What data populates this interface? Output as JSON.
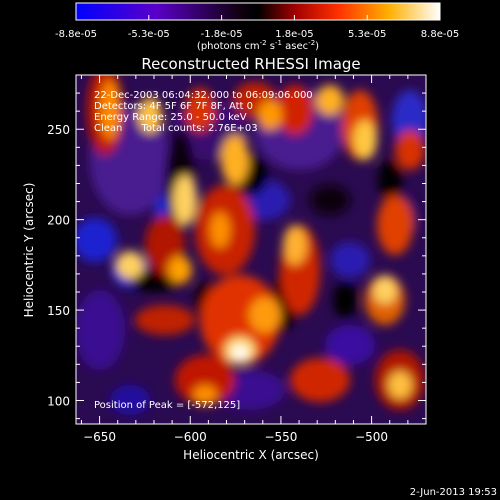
{
  "chart_data": {
    "type": "heatmap",
    "title": "Reconstructed RHESSI Image",
    "xlabel": "Heliocentric X (arcsec)",
    "ylabel": "Heliocentric Y (arcsec)",
    "xlim": [
      -663,
      -470
    ],
    "ylim": [
      87,
      280
    ],
    "x_ticks": [
      -650,
      -600,
      -550,
      -500
    ],
    "y_ticks": [
      100,
      150,
      200,
      250
    ],
    "colorbar": {
      "tick_labels": [
        "-8.8e-05",
        "-5.3e-05",
        "-1.8e-05",
        "1.8e-05",
        "5.3e-05",
        "8.8e-05"
      ],
      "range": [
        -8.8e-05,
        8.8e-05
      ],
      "units_label": "(photons cm",
      "units_exp1": "-2",
      "units_mid": " s",
      "units_exp2": "-1",
      "units_end": " asec",
      "units_exp3": "-2",
      "units_close": ")"
    },
    "annotations": [
      "22-Dec-2003 06:04:32.000 to 06:09:06.000",
      "Detectors: 4F 5F 6F 7F 8F, Att 0",
      "Energy Range: 25.0 - 50.0 keV",
      "Clean      Total counts: 2.76E+03"
    ],
    "peak_label": "Position of Peak = [-572,125]",
    "peak": {
      "x": -572,
      "y": 125,
      "value": 8.8e-05
    },
    "footer_date": "2-Jun-2013 19:53"
  }
}
